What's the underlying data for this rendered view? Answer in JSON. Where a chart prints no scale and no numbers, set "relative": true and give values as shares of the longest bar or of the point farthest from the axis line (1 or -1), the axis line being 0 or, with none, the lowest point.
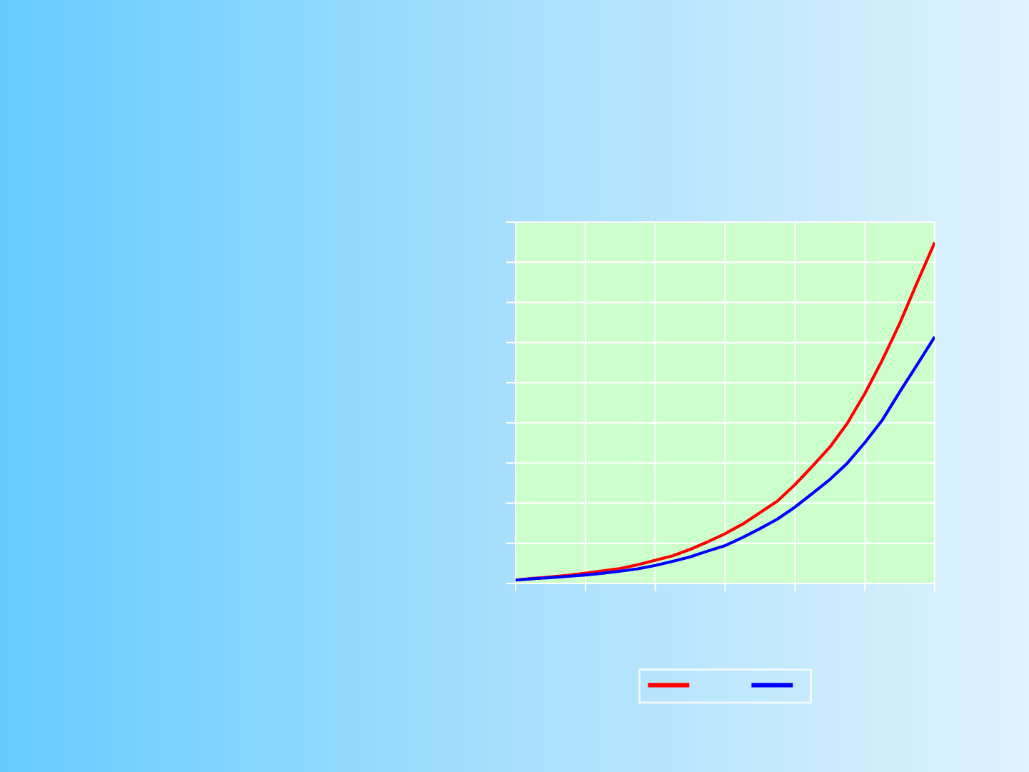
{
  "chart_data": {
    "type": "line",
    "relative": true,
    "categories": [
      null,
      null,
      null,
      null,
      null,
      null,
      null,
      null,
      null,
      null,
      null,
      null,
      null,
      null,
      null,
      null,
      null,
      null,
      null,
      null,
      null,
      null,
      null,
      null,
      null
    ],
    "series": [
      {
        "color": "#ff0000",
        "values": [
          0.01,
          0.015,
          0.019,
          0.024,
          0.03,
          0.037,
          0.044,
          0.055,
          0.068,
          0.081,
          0.1,
          0.122,
          0.146,
          0.174,
          0.208,
          0.242,
          0.29,
          0.344,
          0.4,
          0.47,
          0.557,
          0.655,
          0.763,
          0.883,
          1
        ]
      },
      {
        "color": "#0000ff",
        "values": [
          0.01,
          0.014,
          0.017,
          0.021,
          0.025,
          0.03,
          0.036,
          0.043,
          0.053,
          0.065,
          0.078,
          0.095,
          0.111,
          0.135,
          0.161,
          0.189,
          0.224,
          0.264,
          0.305,
          0.353,
          0.413,
          0.479,
          0.562,
          0.642,
          0.723
        ]
      }
    ],
    "grid": true,
    "tick_labels": false
  }
}
